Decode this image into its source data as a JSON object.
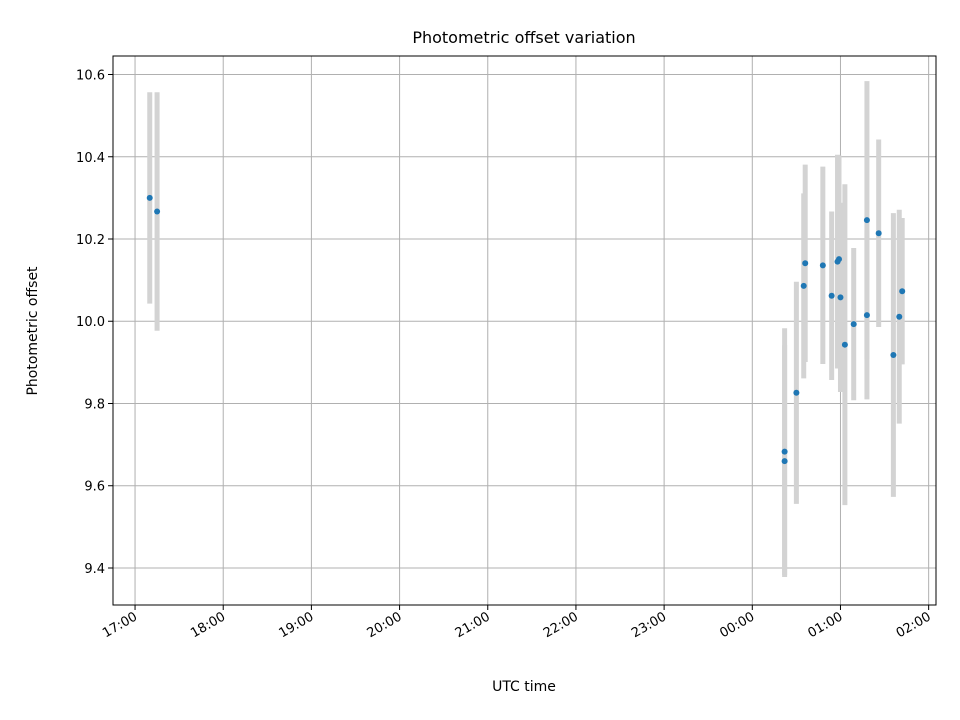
{
  "chart_data": {
    "type": "scatter",
    "title": "Photometric offset variation",
    "xlabel": "UTC time",
    "ylabel": "Photometric offset",
    "x_ticks": [
      "17:00",
      "18:00",
      "19:00",
      "20:00",
      "21:00",
      "22:00",
      "23:00",
      "00:00",
      "01:00",
      "02:00"
    ],
    "y_ticks": [
      "9.4",
      "9.6",
      "9.8",
      "10.0",
      "10.2",
      "10.4",
      "10.6"
    ],
    "xlim": [
      "16:45",
      "02:05"
    ],
    "ylim": [
      9.31,
      10.645
    ],
    "grid": true,
    "colors": {
      "marker": "#1f77b4",
      "errorbar": "#d3d3d3",
      "grid": "#b0b0b0"
    },
    "points": [
      {
        "x": "17:10",
        "y": 10.3,
        "yerr": 0.257
      },
      {
        "x": "17:15",
        "y": 10.267,
        "yerr": 0.29
      },
      {
        "x": "00:22",
        "y": 9.683,
        "yerr": 0.3
      },
      {
        "x": "00:22",
        "y": 9.66,
        "yerr": 0.282
      },
      {
        "x": "00:30",
        "y": 9.826,
        "yerr": 0.27
      },
      {
        "x": "00:35",
        "y": 10.086,
        "yerr": 0.225
      },
      {
        "x": "00:36",
        "y": 10.141,
        "yerr": 0.24
      },
      {
        "x": "00:48",
        "y": 10.136,
        "yerr": 0.24
      },
      {
        "x": "00:54",
        "y": 10.062,
        "yerr": 0.205
      },
      {
        "x": "00:58",
        "y": 10.145,
        "yerr": 0.26
      },
      {
        "x": "00:59",
        "y": 10.151,
        "yerr": 0.252
      },
      {
        "x": "01:00",
        "y": 10.058,
        "yerr": 0.23
      },
      {
        "x": "01:03",
        "y": 9.943,
        "yerr": 0.39
      },
      {
        "x": "01:09",
        "y": 9.993,
        "yerr": 0.185
      },
      {
        "x": "01:18",
        "y": 10.246,
        "yerr": 0.338
      },
      {
        "x": "01:18",
        "y": 10.015,
        "yerr": 0.205
      },
      {
        "x": "01:26",
        "y": 10.214,
        "yerr": 0.228
      },
      {
        "x": "01:36",
        "y": 9.918,
        "yerr": 0.345
      },
      {
        "x": "01:40",
        "y": 10.011,
        "yerr": 0.26
      },
      {
        "x": "01:42",
        "y": 10.073,
        "yerr": 0.178
      }
    ]
  }
}
